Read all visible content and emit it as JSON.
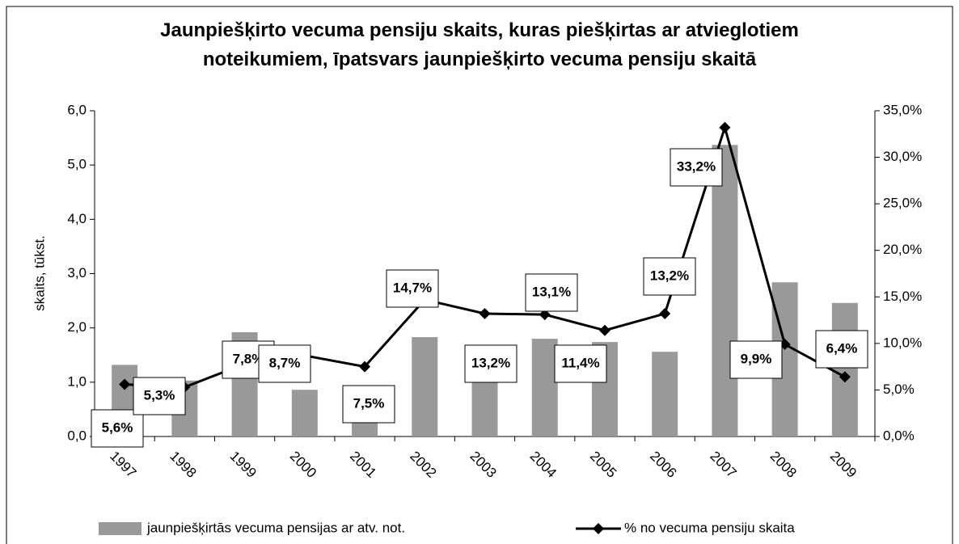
{
  "chart_data": {
    "type": "bar-line",
    "title": "Jaunpiešķirto vecuma pensiju skaits, kuras piešķirtas ar atvieglotiem noteikumiem, īpatsvars jaunpiešķirto vecuma pensiju skaitā",
    "ylabel": "skaits, tūkst.",
    "categories": [
      "1997",
      "1998",
      "1999",
      "2000",
      "2001",
      "2002",
      "2003",
      "2004",
      "2005",
      "2006",
      "2007",
      "2008",
      "2009"
    ],
    "series": [
      {
        "name": "jaunpiešķirtās vecuma pensijas ar atv. not.",
        "type": "bar",
        "color": "#999999",
        "axis": "y",
        "values": [
          1.32,
          1.03,
          1.92,
          0.86,
          0.25,
          1.83,
          1.0,
          1.8,
          1.74,
          1.56,
          5.37,
          2.84,
          2.46
        ]
      },
      {
        "name": "% no vecuma pensiju skaita",
        "type": "line",
        "color": "#000000",
        "axis": "y2",
        "values": [
          5.6,
          5.3,
          7.8,
          8.7,
          7.5,
          14.7,
          13.2,
          13.1,
          11.4,
          13.2,
          33.2,
          9.9,
          6.4
        ],
        "value_labels": [
          "5,6%",
          "5,3%",
          "7,8%",
          "8,7%",
          "7,5%",
          "14,7%",
          "13,2%",
          "13,1%",
          "11,4%",
          "13,2%",
          "33,2%",
          "9,9%",
          "6,4%"
        ]
      }
    ],
    "ylim": [
      0,
      6
    ],
    "yticks": [
      {
        "value": 0,
        "label": "0,0"
      },
      {
        "value": 1,
        "label": "1,0"
      },
      {
        "value": 2,
        "label": "2,0"
      },
      {
        "value": 3,
        "label": "3,0"
      },
      {
        "value": 4,
        "label": "4,0"
      },
      {
        "value": 5,
        "label": "5,0"
      },
      {
        "value": 6,
        "label": "6,0"
      }
    ],
    "y2lim": [
      0,
      35
    ],
    "y2ticks": [
      {
        "value": 0,
        "label": "0,0%"
      },
      {
        "value": 5,
        "label": "5,0%"
      },
      {
        "value": 10,
        "label": "10,0%"
      },
      {
        "value": 15,
        "label": "15,0%"
      },
      {
        "value": 20,
        "label": "20,0%"
      },
      {
        "value": 25,
        "label": "25,0%"
      },
      {
        "value": 30,
        "label": "30,0%"
      },
      {
        "value": 35,
        "label": "35,0%"
      }
    ],
    "legend": "bottom"
  }
}
